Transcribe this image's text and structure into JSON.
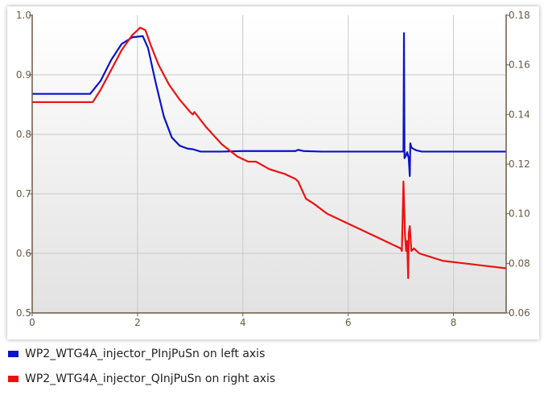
{
  "chart_data": {
    "type": "line",
    "xlim": [
      0,
      9
    ],
    "ylim_left": [
      0.5,
      1.0
    ],
    "ylim_right": [
      0.06,
      0.18
    ],
    "x_ticks": [
      0,
      2,
      4,
      6,
      8
    ],
    "x_tick_labels": [
      "0",
      "2",
      "4",
      "6",
      "8"
    ],
    "y_left_ticks": [
      0.5,
      0.6,
      0.7,
      0.8,
      0.9,
      1.0
    ],
    "y_left_tick_labels": [
      "0.5",
      "0.6",
      "0.7",
      "0.8",
      "0.9",
      "1.0"
    ],
    "y_right_ticks": [
      0.06,
      0.08,
      0.1,
      0.12,
      0.14,
      0.16,
      0.18
    ],
    "y_right_tick_labels": [
      "0.06",
      "0.08",
      "0.10",
      "0.12",
      "0.14",
      "0.16",
      "0.18"
    ],
    "grid": true,
    "legend_placement": "bottom",
    "series": [
      {
        "name": "WP2_WTG4A_injector_PInjPuSn",
        "axis": "left",
        "color": "#0a14c8",
        "x": [
          0,
          1.1,
          1.3,
          1.5,
          1.7,
          1.9,
          2.1,
          2.2,
          2.35,
          2.5,
          2.65,
          2.8,
          2.95,
          3.05,
          3.2,
          3.6,
          4.0,
          4.5,
          5.0,
          5.05,
          5.15,
          5.5,
          6.0,
          6.5,
          7.0,
          7.05,
          7.06,
          7.07,
          7.1,
          7.12,
          7.15,
          7.17,
          7.18,
          7.2,
          7.25,
          7.3,
          7.4,
          7.6,
          8.0,
          8.5,
          9.0
        ],
        "y": [
          0.868,
          0.868,
          0.89,
          0.925,
          0.952,
          0.963,
          0.965,
          0.945,
          0.885,
          0.83,
          0.795,
          0.781,
          0.776,
          0.775,
          0.771,
          0.771,
          0.772,
          0.772,
          0.772,
          0.774,
          0.772,
          0.771,
          0.771,
          0.771,
          0.771,
          0.771,
          0.97,
          0.76,
          0.765,
          0.77,
          0.76,
          0.73,
          0.785,
          0.778,
          0.775,
          0.773,
          0.771,
          0.771,
          0.771,
          0.771,
          0.771
        ]
      },
      {
        "name": "WP2_WTG4A_injector_QInjPuSn",
        "axis": "right",
        "color": "#ee1111",
        "x": [
          0,
          1.15,
          1.3,
          1.5,
          1.7,
          1.9,
          2.05,
          2.15,
          2.25,
          2.4,
          2.6,
          2.8,
          3.0,
          3.05,
          3.08,
          3.3,
          3.6,
          3.9,
          4.1,
          4.25,
          4.5,
          4.8,
          5.0,
          5.05,
          5.2,
          5.35,
          5.6,
          6.0,
          6.5,
          7.0,
          7.02,
          7.03,
          7.05,
          7.08,
          7.1,
          7.12,
          7.14,
          7.15,
          7.17,
          7.2,
          7.25,
          7.35,
          7.5,
          7.8,
          8.2,
          8.6,
          9.0
        ],
        "y": [
          0.145,
          0.145,
          0.15,
          0.158,
          0.166,
          0.172,
          0.175,
          0.174,
          0.168,
          0.16,
          0.152,
          0.146,
          0.141,
          0.14,
          0.141,
          0.135,
          0.128,
          0.123,
          0.121,
          0.121,
          0.118,
          0.116,
          0.114,
          0.113,
          0.106,
          0.104,
          0.1,
          0.096,
          0.091,
          0.086,
          0.085,
          0.094,
          0.113,
          0.091,
          0.085,
          0.089,
          0.074,
          0.092,
          0.095,
          0.085,
          0.086,
          0.084,
          0.083,
          0.081,
          0.08,
          0.079,
          0.078
        ]
      }
    ],
    "legend": [
      {
        "label": "WP2_WTG4A_injector_PInjPuSn on left axis",
        "color": "#0a14c8"
      },
      {
        "label": "WP2_WTG4A_injector_QInjPuSn on right axis",
        "color": "#ee1111"
      }
    ]
  }
}
